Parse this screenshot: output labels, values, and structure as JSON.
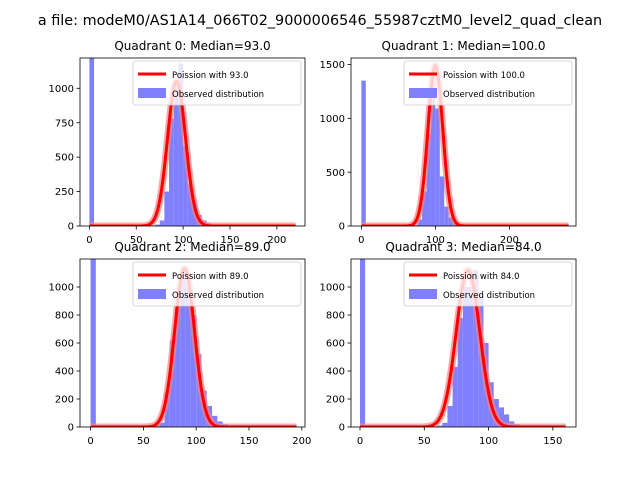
{
  "suptitle": "a file: modeM0/AS1A14_066T02_9000006546_55987cztM0_level2_quad_clean",
  "colors": {
    "hist": "#8080ff",
    "poisson": "#ff0000",
    "poisson_glow": "#ff8080"
  },
  "chart_data": [
    {
      "type": "bar",
      "title": "Quadrant 0: Median=93.0",
      "median": 93.0,
      "xlim": [
        -10,
        230
      ],
      "ylim": [
        0,
        1220
      ],
      "xticks": [
        0,
        50,
        100,
        150,
        200
      ],
      "yticks": [
        0,
        250,
        500,
        750,
        1000
      ],
      "bin_width": 5,
      "zero_bin_count": 1220,
      "poisson_peak": 1050,
      "poisson_sigma": 9.64,
      "poisson_range": [
        0,
        220
      ],
      "bins": [
        [
          70,
          10
        ],
        [
          75,
          40
        ],
        [
          80,
          250
        ],
        [
          85,
          780
        ],
        [
          90,
          1000
        ],
        [
          95,
          1180
        ],
        [
          100,
          580
        ],
        [
          105,
          300
        ],
        [
          110,
          160
        ],
        [
          115,
          80
        ],
        [
          120,
          40
        ],
        [
          125,
          20
        ]
      ],
      "legend": [
        "Poission with 93.0",
        "Observed distribution"
      ]
    },
    {
      "type": "bar",
      "title": "Quadrant 1: Median=100.0",
      "median": 100.0,
      "xlim": [
        -14,
        290
      ],
      "ylim": [
        0,
        1560
      ],
      "xticks": [
        0,
        100,
        200
      ],
      "yticks": [
        0,
        500,
        1000,
        1500
      ],
      "bin_width": 6,
      "zero_bin_count": 1350,
      "poisson_peak": 1490,
      "poisson_sigma": 10.0,
      "poisson_range": [
        0,
        280
      ],
      "bins": [
        [
          70,
          10
        ],
        [
          76,
          60
        ],
        [
          82,
          320
        ],
        [
          88,
          850
        ],
        [
          94,
          1300
        ],
        [
          100,
          1090
        ],
        [
          106,
          460
        ],
        [
          112,
          180
        ],
        [
          118,
          80
        ],
        [
          124,
          30
        ]
      ],
      "legend": [
        "Poission with 100.0",
        "Observed distribution"
      ]
    },
    {
      "type": "bar",
      "title": "Quadrant 2: Median=89.0",
      "median": 89.0,
      "xlim": [
        -10,
        203
      ],
      "ylim": [
        0,
        1200
      ],
      "xticks": [
        0,
        50,
        100,
        150,
        200
      ],
      "yticks": [
        0,
        200,
        400,
        600,
        800,
        1000
      ],
      "bin_width": 5,
      "zero_bin_count": 1200,
      "poisson_peak": 1130,
      "poisson_sigma": 9.43,
      "poisson_range": [
        0,
        195
      ],
      "bins": [
        [
          60,
          10
        ],
        [
          65,
          30
        ],
        [
          70,
          250
        ],
        [
          75,
          620
        ],
        [
          80,
          860
        ],
        [
          85,
          1060
        ],
        [
          90,
          1000
        ],
        [
          95,
          800
        ],
        [
          100,
          520
        ],
        [
          105,
          260
        ],
        [
          110,
          150
        ],
        [
          115,
          80
        ],
        [
          120,
          40
        ],
        [
          125,
          20
        ]
      ],
      "legend": [
        "Poission with 89.0",
        "Observed distribution"
      ]
    },
    {
      "type": "bar",
      "title": "Quadrant 3: Median=84.0",
      "median": 84.0,
      "xlim": [
        -7,
        168
      ],
      "ylim": [
        0,
        1200
      ],
      "xticks": [
        0,
        50,
        100,
        150
      ],
      "yticks": [
        0,
        200,
        400,
        600,
        800,
        1000
      ],
      "bin_width": 4,
      "zero_bin_count": 1200,
      "poisson_peak": 1120,
      "poisson_sigma": 9.17,
      "poisson_range": [
        0,
        160
      ],
      "bins": [
        [
          60,
          10
        ],
        [
          64,
          30
        ],
        [
          68,
          150
        ],
        [
          72,
          430
        ],
        [
          76,
          780
        ],
        [
          80,
          1000
        ],
        [
          84,
          1000
        ],
        [
          88,
          1120
        ],
        [
          92,
          950
        ],
        [
          96,
          600
        ],
        [
          100,
          320
        ],
        [
          104,
          200
        ],
        [
          108,
          140
        ],
        [
          112,
          90
        ],
        [
          116,
          40
        ],
        [
          120,
          20
        ]
      ],
      "legend": [
        "Poission with 84.0",
        "Observed distribution"
      ]
    }
  ]
}
